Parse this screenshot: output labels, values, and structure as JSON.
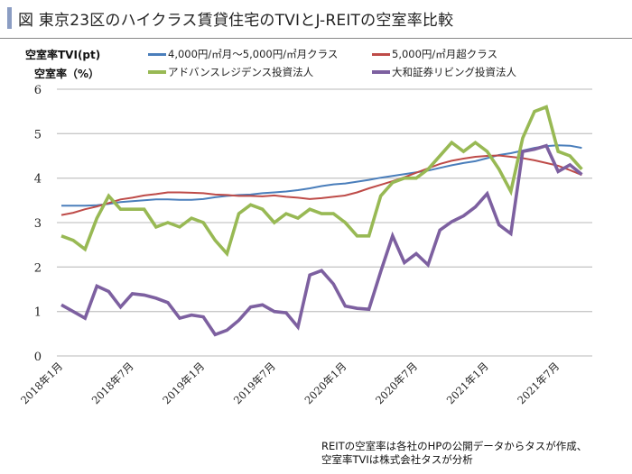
{
  "title": "図 東京23区のハイクラス賃貸住宅のTVIとJ-REITの空室率比較",
  "note_lines": [
    "REITの空室率は各社のHPの公開データからタスが作成、",
    "空室率TVIは株式会社タスが分析"
  ],
  "chart_data": {
    "type": "line",
    "title": "図 東京23区のハイクラス賃貸住宅のTVIとJ-REITの空室率比較",
    "ylabel": [
      "空室率TVI(pt)",
      "空室率（%）"
    ],
    "xlabel": "",
    "ylim": [
      0,
      6
    ],
    "yticks": [
      0,
      1,
      2,
      3,
      4,
      5,
      6
    ],
    "grid": true,
    "legend": "top",
    "x_start": "2018-01",
    "x_end": "2021-09",
    "x_ticks": [
      "2018年1月",
      "2018年7月",
      "2019年1月",
      "2019年7月",
      "2020年1月",
      "2020年7月",
      "2021年1月",
      "2021年7月"
    ],
    "series": [
      {
        "name": "4,000円/㎡月～5,000円/㎡月クラス",
        "color": "#4a7ebb",
        "values": [
          3.38,
          3.38,
          3.38,
          3.39,
          3.42,
          3.46,
          3.48,
          3.5,
          3.52,
          3.52,
          3.51,
          3.51,
          3.53,
          3.57,
          3.6,
          3.62,
          3.63,
          3.66,
          3.68,
          3.7,
          3.73,
          3.77,
          3.82,
          3.86,
          3.88,
          3.92,
          3.96,
          4.01,
          4.05,
          4.09,
          4.13,
          4.17,
          4.23,
          4.29,
          4.34,
          4.38,
          4.45,
          4.52,
          4.56,
          4.62,
          4.68,
          4.72,
          4.74,
          4.73,
          4.68
        ]
      },
      {
        "name": "5,000円/㎡月超クラス",
        "color": "#be4b48",
        "values": [
          3.17,
          3.22,
          3.3,
          3.36,
          3.44,
          3.52,
          3.56,
          3.61,
          3.64,
          3.68,
          3.68,
          3.67,
          3.66,
          3.63,
          3.62,
          3.6,
          3.6,
          3.59,
          3.61,
          3.58,
          3.56,
          3.53,
          3.55,
          3.58,
          3.61,
          3.68,
          3.77,
          3.85,
          3.93,
          4.02,
          4.12,
          4.22,
          4.32,
          4.39,
          4.44,
          4.48,
          4.5,
          4.51,
          4.48,
          4.45,
          4.4,
          4.34,
          4.28,
          4.18,
          4.07
        ]
      },
      {
        "name": "アドバンスレジデンス投資法人",
        "color": "#98b954",
        "values": [
          2.7,
          2.6,
          2.4,
          3.1,
          3.6,
          3.3,
          3.3,
          3.3,
          2.9,
          3.0,
          2.9,
          3.1,
          3.0,
          2.6,
          2.3,
          3.2,
          3.4,
          3.3,
          3.0,
          3.2,
          3.1,
          3.3,
          3.2,
          3.2,
          3.0,
          2.7,
          2.7,
          3.6,
          3.9,
          4.0,
          4.0,
          4.2,
          4.5,
          4.8,
          4.6,
          4.8,
          4.6,
          4.2,
          3.7,
          4.9,
          5.5,
          5.6,
          4.6,
          4.5,
          4.2
        ]
      },
      {
        "name": "大和証券リビング投資法人",
        "color": "#7d60a0",
        "values": [
          1.15,
          1.0,
          0.85,
          1.57,
          1.45,
          1.1,
          1.4,
          1.37,
          1.3,
          1.2,
          0.85,
          0.92,
          0.88,
          0.48,
          0.58,
          0.8,
          1.1,
          1.15,
          1.0,
          0.97,
          0.65,
          1.82,
          1.92,
          1.62,
          1.12,
          1.07,
          1.05,
          1.9,
          2.7,
          2.1,
          2.3,
          2.05,
          2.83,
          3.02,
          3.15,
          3.35,
          3.65,
          2.95,
          2.75,
          4.6,
          4.65,
          4.73,
          4.15,
          4.3,
          4.08
        ]
      }
    ]
  }
}
